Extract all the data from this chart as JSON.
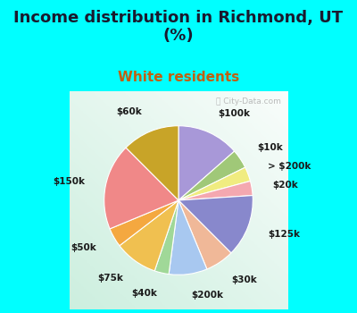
{
  "title": "Income distribution in Richmond, UT\n(%)",
  "subtitle": "White residents",
  "title_color": "#1a1a2e",
  "subtitle_color": "#c06010",
  "bg_cyan": "#00ffff",
  "labels": [
    "$100k",
    "$10k",
    "> $200k",
    "$20k",
    "$125k",
    "$30k",
    "$200k",
    "$40k",
    "$75k",
    "$50k",
    "$150k",
    "$60k"
  ],
  "values": [
    13,
    4,
    3,
    3,
    13,
    6,
    8,
    3,
    9,
    4,
    18,
    12
  ],
  "colors": [
    "#a898d8",
    "#a0c878",
    "#f0ec80",
    "#f4a8b0",
    "#8888cc",
    "#f0b898",
    "#a8c8f0",
    "#a0d898",
    "#f0c050",
    "#f4a840",
    "#f08888",
    "#c8a428"
  ],
  "wedge_linewidth": 0.8,
  "wedge_linecolor": "#ffffff",
  "label_fontsize": 7.5,
  "title_fontsize": 13,
  "subtitle_fontsize": 11,
  "watermark": "ⓘ City-Data.com"
}
